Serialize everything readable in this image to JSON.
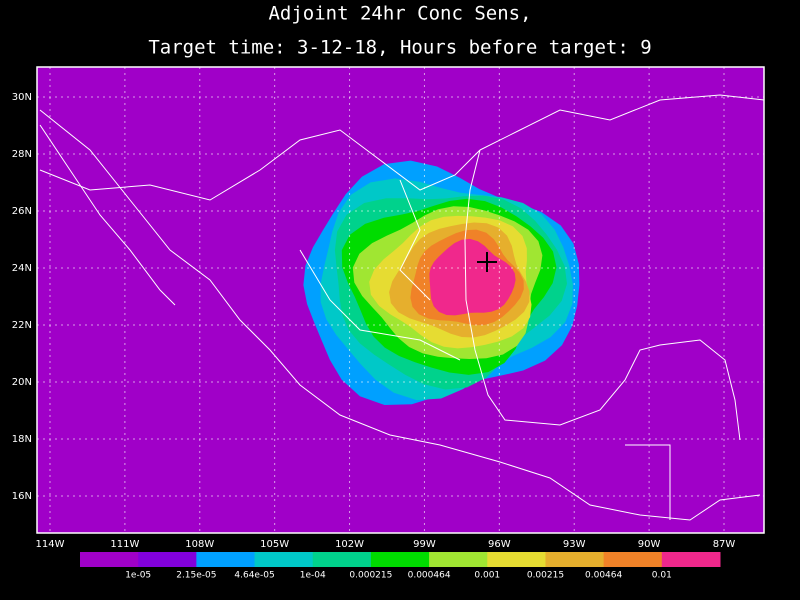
{
  "title": [
    "Adjoint 24hr Conc Sens,",
    "Target time: 3-12-18, Hours before target: 9"
  ],
  "lat_labels": [
    "30N",
    "28N",
    "26N",
    "24N",
    "22N",
    "20N",
    "18N",
    "16N"
  ],
  "lon_labels": [
    "114W",
    "111W",
    "108W",
    "105W",
    "102W",
    "99W",
    "96W",
    "93W",
    "90W",
    "87W"
  ],
  "colorbar": {
    "colors": [
      "#a000c8",
      "#8200dc",
      "#00a0ff",
      "#00c8c8",
      "#00d28c",
      "#00dc00",
      "#a0e632",
      "#e6dc32",
      "#e6af2d",
      "#f08228",
      "#f0288c"
    ],
    "labels": [
      "1e-05",
      "2.15e-05",
      "4.64e-05",
      "1e-04",
      "0.000215",
      "0.000464",
      "0.001",
      "0.00215",
      "0.00464",
      "0.01"
    ]
  }
}
